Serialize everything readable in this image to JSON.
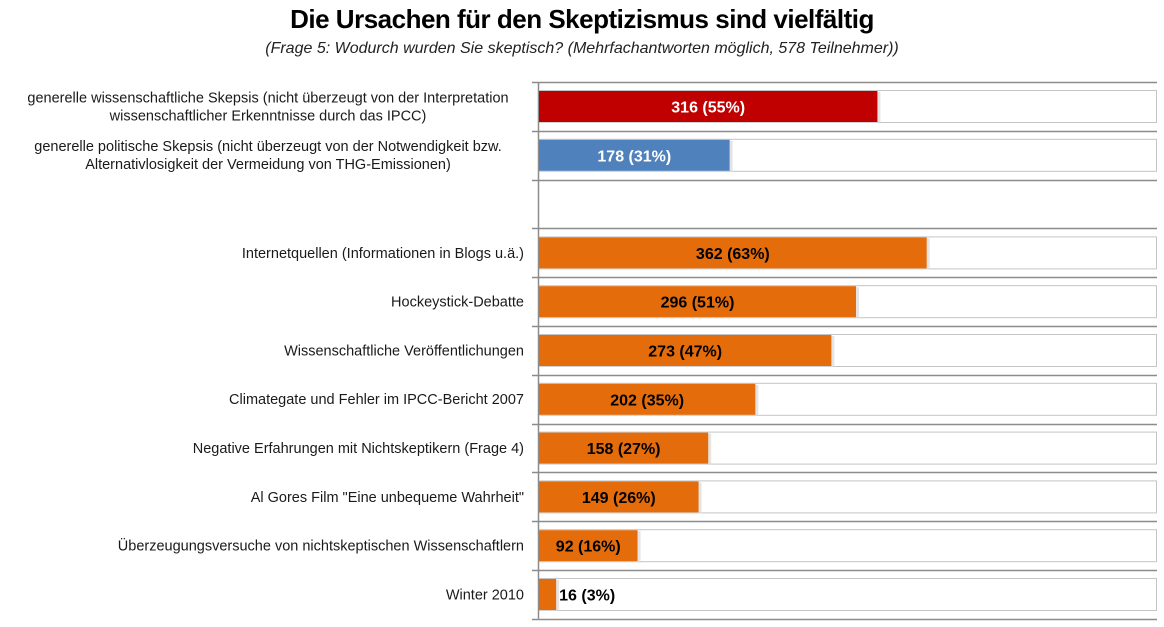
{
  "chart_data": {
    "type": "bar",
    "orientation": "horizontal",
    "title": "Die Ursachen für den Skeptizismus sind vielfältig",
    "subtitle": "(Frage 5: Wodurch wurden Sie skeptisch? (Mehrfachantworten möglich, 578 Teilnehmer))",
    "total": 578,
    "xlim": [
      0,
      578
    ],
    "grid": false,
    "legend": "none",
    "xlabel": "",
    "ylabel": "",
    "rows": [
      {
        "lines": [
          "generelle wissenschaftliche Skepsis (nicht überzeugt von der Interpretation",
          "wissenschaftlicher Erkenntnisse durch das IPCC)"
        ],
        "value": 316,
        "percent": 55,
        "label": "316 (55%)",
        "color": "#C00000",
        "label_color": "#ffffff"
      },
      {
        "lines": [
          "generelle politische Skepsis (nicht überzeugt von der Notwendigkeit bzw.",
          "Alternativlosigkeit der Vermeidung von THG-Emissionen)"
        ],
        "value": 178,
        "percent": 31,
        "label": "178 (31%)",
        "color": "#4F81BD",
        "label_color": "#ffffff"
      },
      {
        "lines": [],
        "value": null,
        "percent": null,
        "label": "",
        "color": "",
        "label_color": ""
      },
      {
        "lines": [
          "Internetquellen (Informationen in Blogs u.ä.)"
        ],
        "value": 362,
        "percent": 63,
        "label": "362 (63%)",
        "color": "#E46C0A",
        "label_color": "#000000"
      },
      {
        "lines": [
          "Hockeystick-Debatte"
        ],
        "value": 296,
        "percent": 51,
        "label": "296 (51%)",
        "color": "#E46C0A",
        "label_color": "#000000"
      },
      {
        "lines": [
          "Wissenschaftliche Veröffentlichungen"
        ],
        "value": 273,
        "percent": 47,
        "label": "273 (47%)",
        "color": "#E46C0A",
        "label_color": "#000000"
      },
      {
        "lines": [
          "Climategate und Fehler im IPCC-Bericht 2007"
        ],
        "value": 202,
        "percent": 35,
        "label": "202 (35%)",
        "color": "#E46C0A",
        "label_color": "#000000"
      },
      {
        "lines": [
          "Negative Erfahrungen mit Nichtskeptikern (Frage 4)"
        ],
        "value": 158,
        "percent": 27,
        "label": "158 (27%)",
        "color": "#E46C0A",
        "label_color": "#000000"
      },
      {
        "lines": [
          "Al Gores Film \"Eine unbequeme Wahrheit\""
        ],
        "value": 149,
        "percent": 26,
        "label": "149 (26%)",
        "color": "#E46C0A",
        "label_color": "#000000"
      },
      {
        "lines": [
          "Überzeugungsversuche von nichtskeptischen Wissenschaftlern"
        ],
        "value": 92,
        "percent": 16,
        "label": "92 (16%)",
        "color": "#E46C0A",
        "label_color": "#000000"
      },
      {
        "lines": [
          "Winter 2010"
        ],
        "value": 16,
        "percent": 3,
        "label": "16 (3%)",
        "color": "#E46C0A",
        "label_color": "#000000"
      }
    ]
  }
}
